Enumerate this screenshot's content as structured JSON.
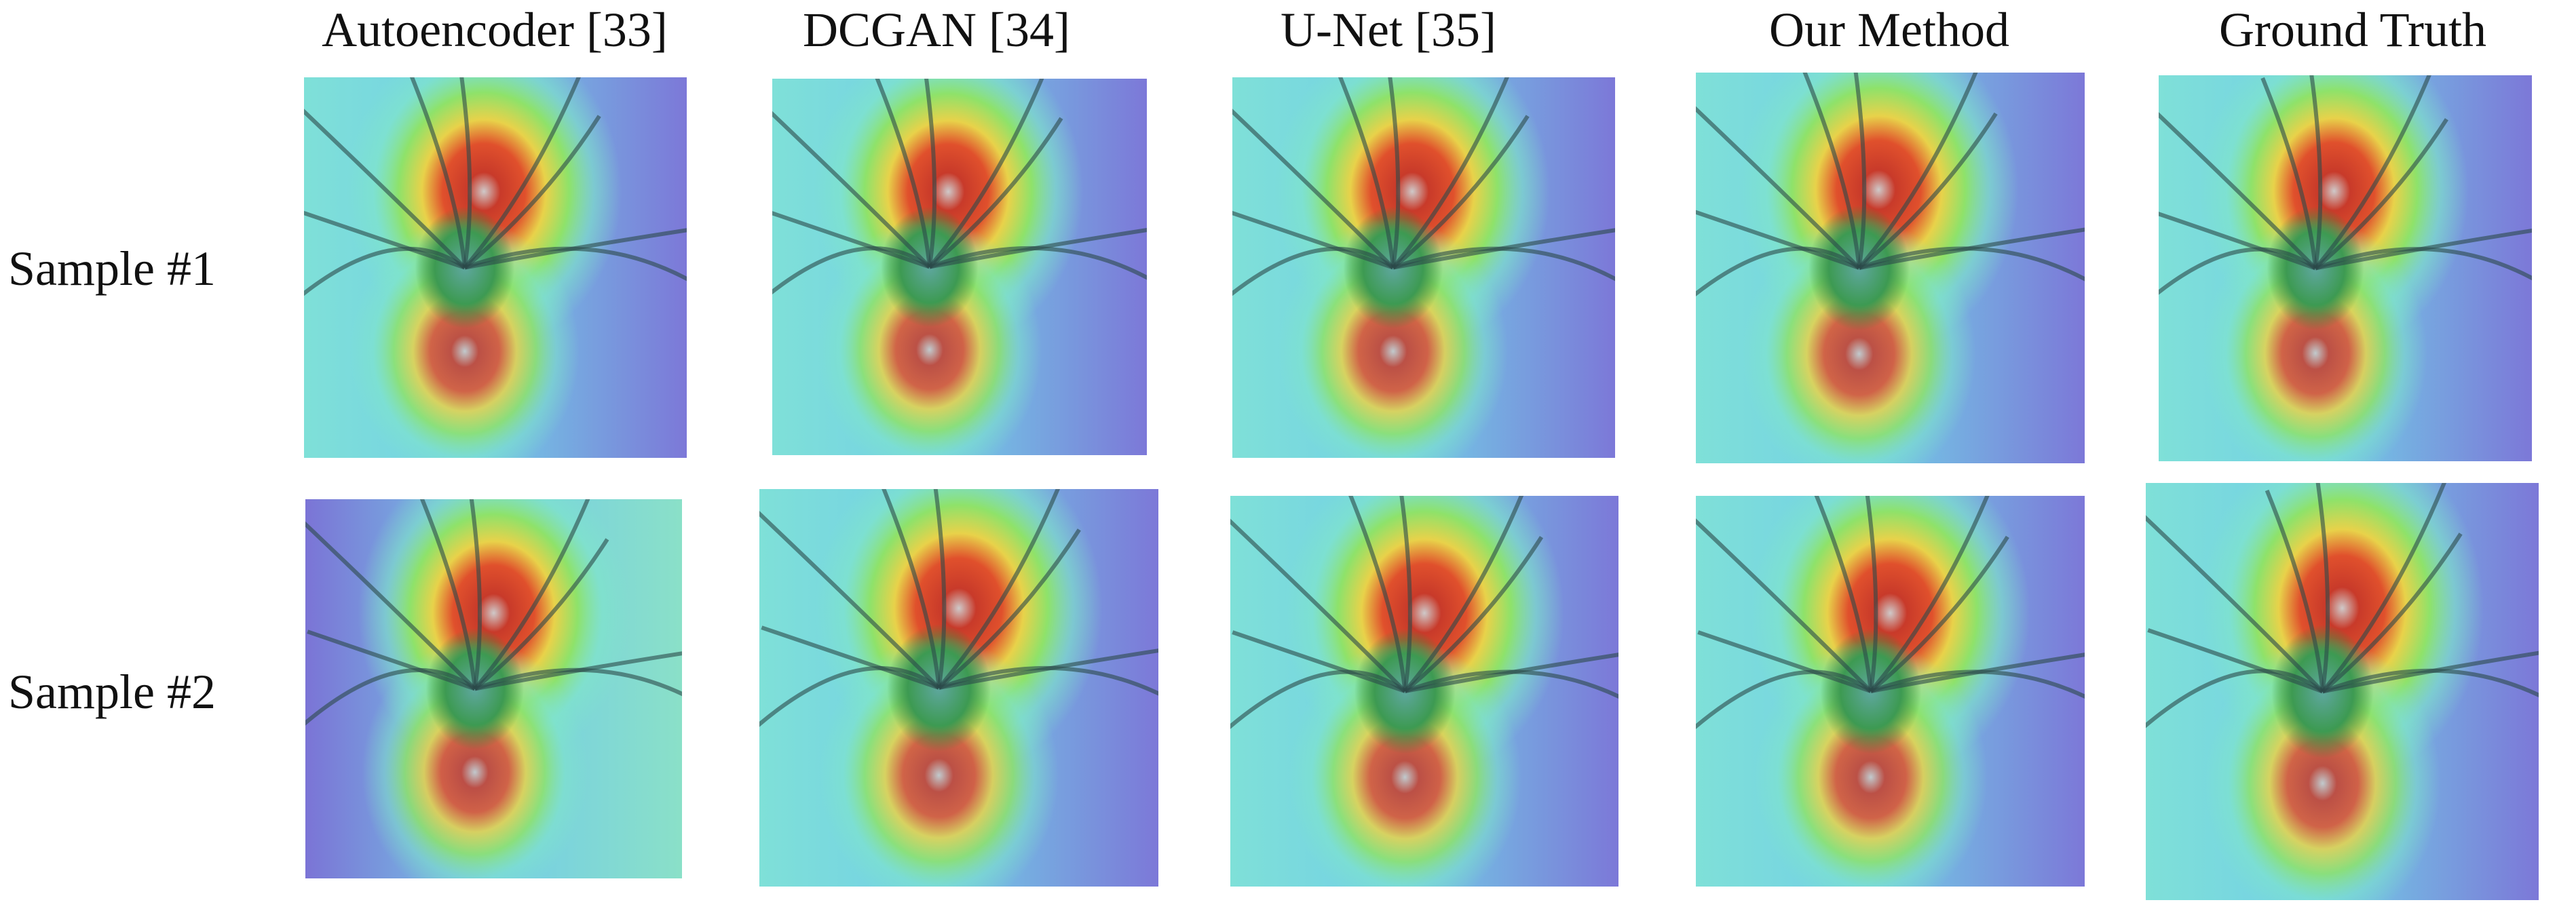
{
  "columns": [
    "Autoencoder [33]",
    "DCGAN [34]",
    "U-Net [35]",
    "Our Method",
    "Ground Truth"
  ],
  "rows": [
    "Sample #1",
    "Sample #2"
  ]
}
